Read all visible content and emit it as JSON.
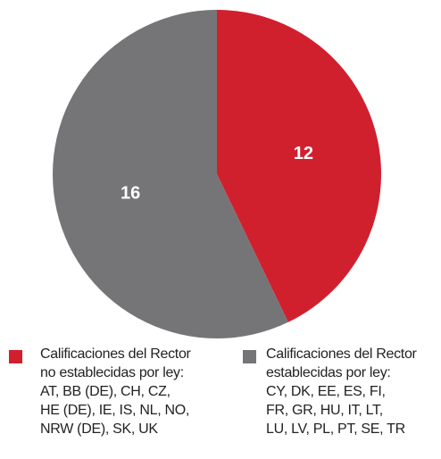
{
  "chart_data": {
    "type": "pie",
    "series": [
      {
        "name": "Calificaciones del Rector\nno establecidas por ley:\nAT, BB (DE), CH, CZ,\nHE (DE), IE, IS, NL, NO,\nNRW (DE), SK, UK",
        "color": "#d0202e",
        "values": [
          12
        ]
      },
      {
        "name": "Calificaciones del Rector\nestablecidas por ley:\nCY, DK, EE, ES, FI,\nFR, GR, HU, IT, LT,\nLU, LV, PL, PT, SE, TR",
        "color": "#757577",
        "values": [
          16
        ]
      }
    ]
  }
}
